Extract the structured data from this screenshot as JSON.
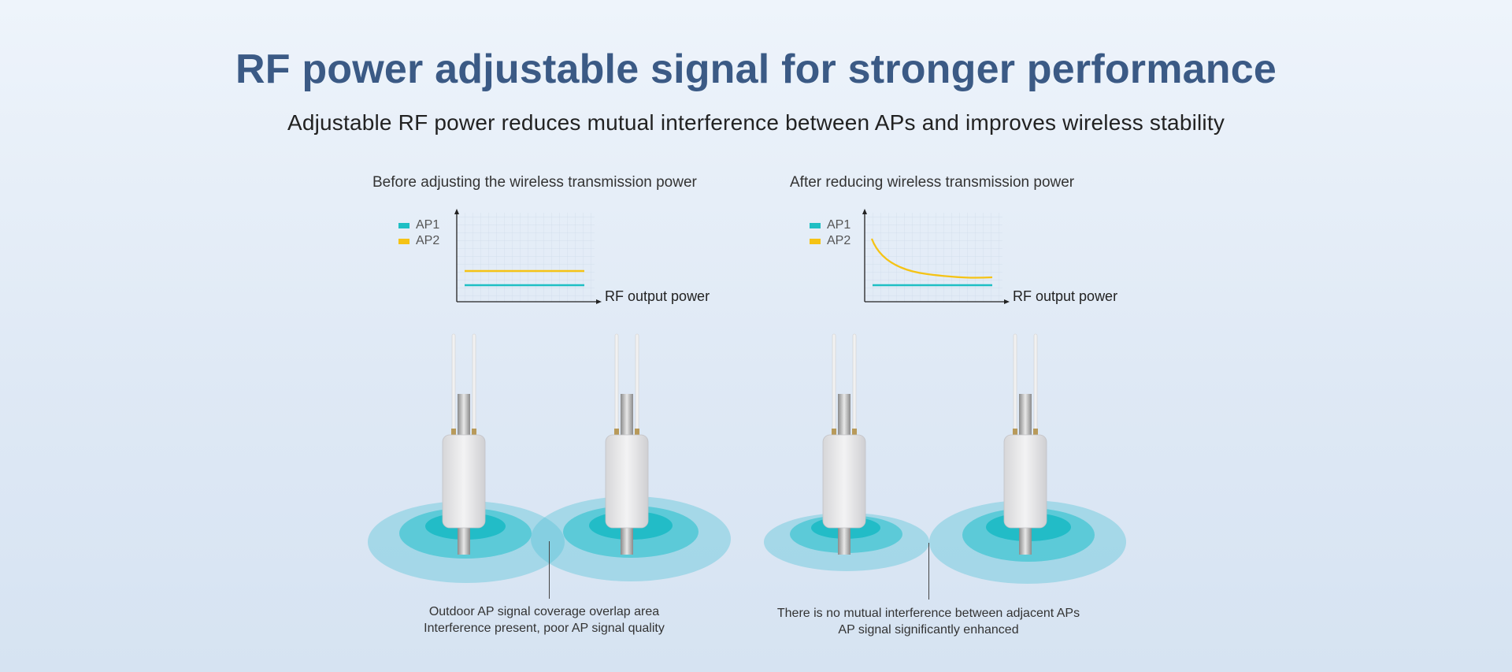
{
  "title": "RF power adjustable signal for stronger performance",
  "subtitle": "Adjustable RF power reduces mutual interference between APs and improves wireless stability",
  "colors": {
    "ap1": "#1fbfc4",
    "ap2": "#f5c315",
    "title": "#3b5a85"
  },
  "panels": [
    {
      "title": "Before adjusting the wireless transmission power",
      "legend": [
        "AP1",
        "AP2"
      ],
      "x_axis_label": "RF output power",
      "caption_lines": [
        "Outdoor AP signal coverage overlap area",
        "Interference present, poor AP signal quality"
      ]
    },
    {
      "title": "After reducing wireless transmission power",
      "legend": [
        "AP1",
        "AP2"
      ],
      "x_axis_label": "RF output power",
      "caption_lines": [
        "There is no mutual interference between adjacent APs",
        "AP signal significantly enhanced"
      ]
    }
  ]
}
